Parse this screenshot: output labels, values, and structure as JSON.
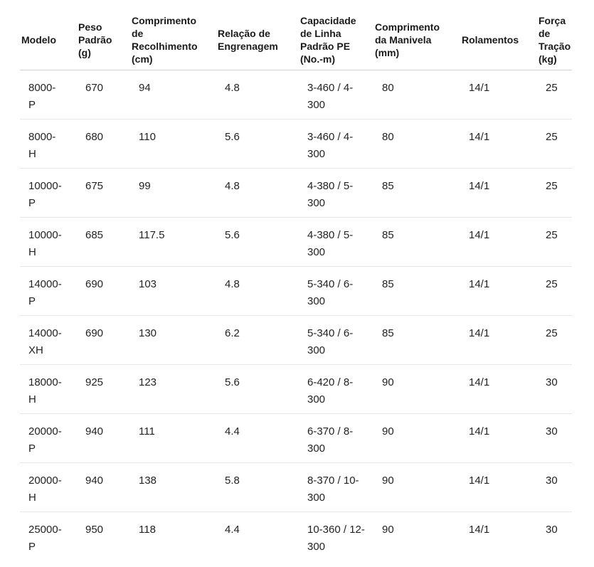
{
  "colors": {
    "background": "#ffffff",
    "text": "#222222",
    "header_text": "#1a1a1a",
    "header_divider": "#d2d2d2",
    "row_divider": "#e7e7e7"
  },
  "chart_data": {
    "type": "table",
    "columns": [
      "Modelo",
      "Peso Padrão (g)",
      "Comprimento de Recolhimento (cm)",
      "Relação de Engrenagem",
      "Capacidade de Linha Padrão PE (No.-m)",
      "Comprimento da Manivela (mm)",
      "Rolamentos",
      "Força de Tração (kg)"
    ],
    "rows": [
      [
        "8000-P",
        "670",
        "94",
        "4.8",
        "3-460 / 4-300",
        "80",
        "14/1",
        "25"
      ],
      [
        "8000-H",
        "680",
        "110",
        "5.6",
        "3-460 / 4-300",
        "80",
        "14/1",
        "25"
      ],
      [
        "10000-P",
        "675",
        "99",
        "4.8",
        "4-380 / 5-300",
        "85",
        "14/1",
        "25"
      ],
      [
        "10000-H",
        "685",
        "117.5",
        "5.6",
        "4-380 / 5-300",
        "85",
        "14/1",
        "25"
      ],
      [
        "14000-P",
        "690",
        "103",
        "4.8",
        "5-340 / 6-300",
        "85",
        "14/1",
        "25"
      ],
      [
        "14000-XH",
        "690",
        "130",
        "6.2",
        "5-340 / 6-300",
        "85",
        "14/1",
        "25"
      ],
      [
        "18000-H",
        "925",
        "123",
        "5.6",
        "6-420 / 8-300",
        "90",
        "14/1",
        "30"
      ],
      [
        "20000-P",
        "940",
        "111",
        "4.4",
        "6-370 / 8-300",
        "90",
        "14/1",
        "30"
      ],
      [
        "20000-H",
        "940",
        "138",
        "5.8",
        "8-370 / 10-300",
        "90",
        "14/1",
        "30"
      ],
      [
        "25000-P",
        "950",
        "118",
        "4.4",
        "10-360 / 12-300",
        "90",
        "14/1",
        "30"
      ]
    ]
  }
}
